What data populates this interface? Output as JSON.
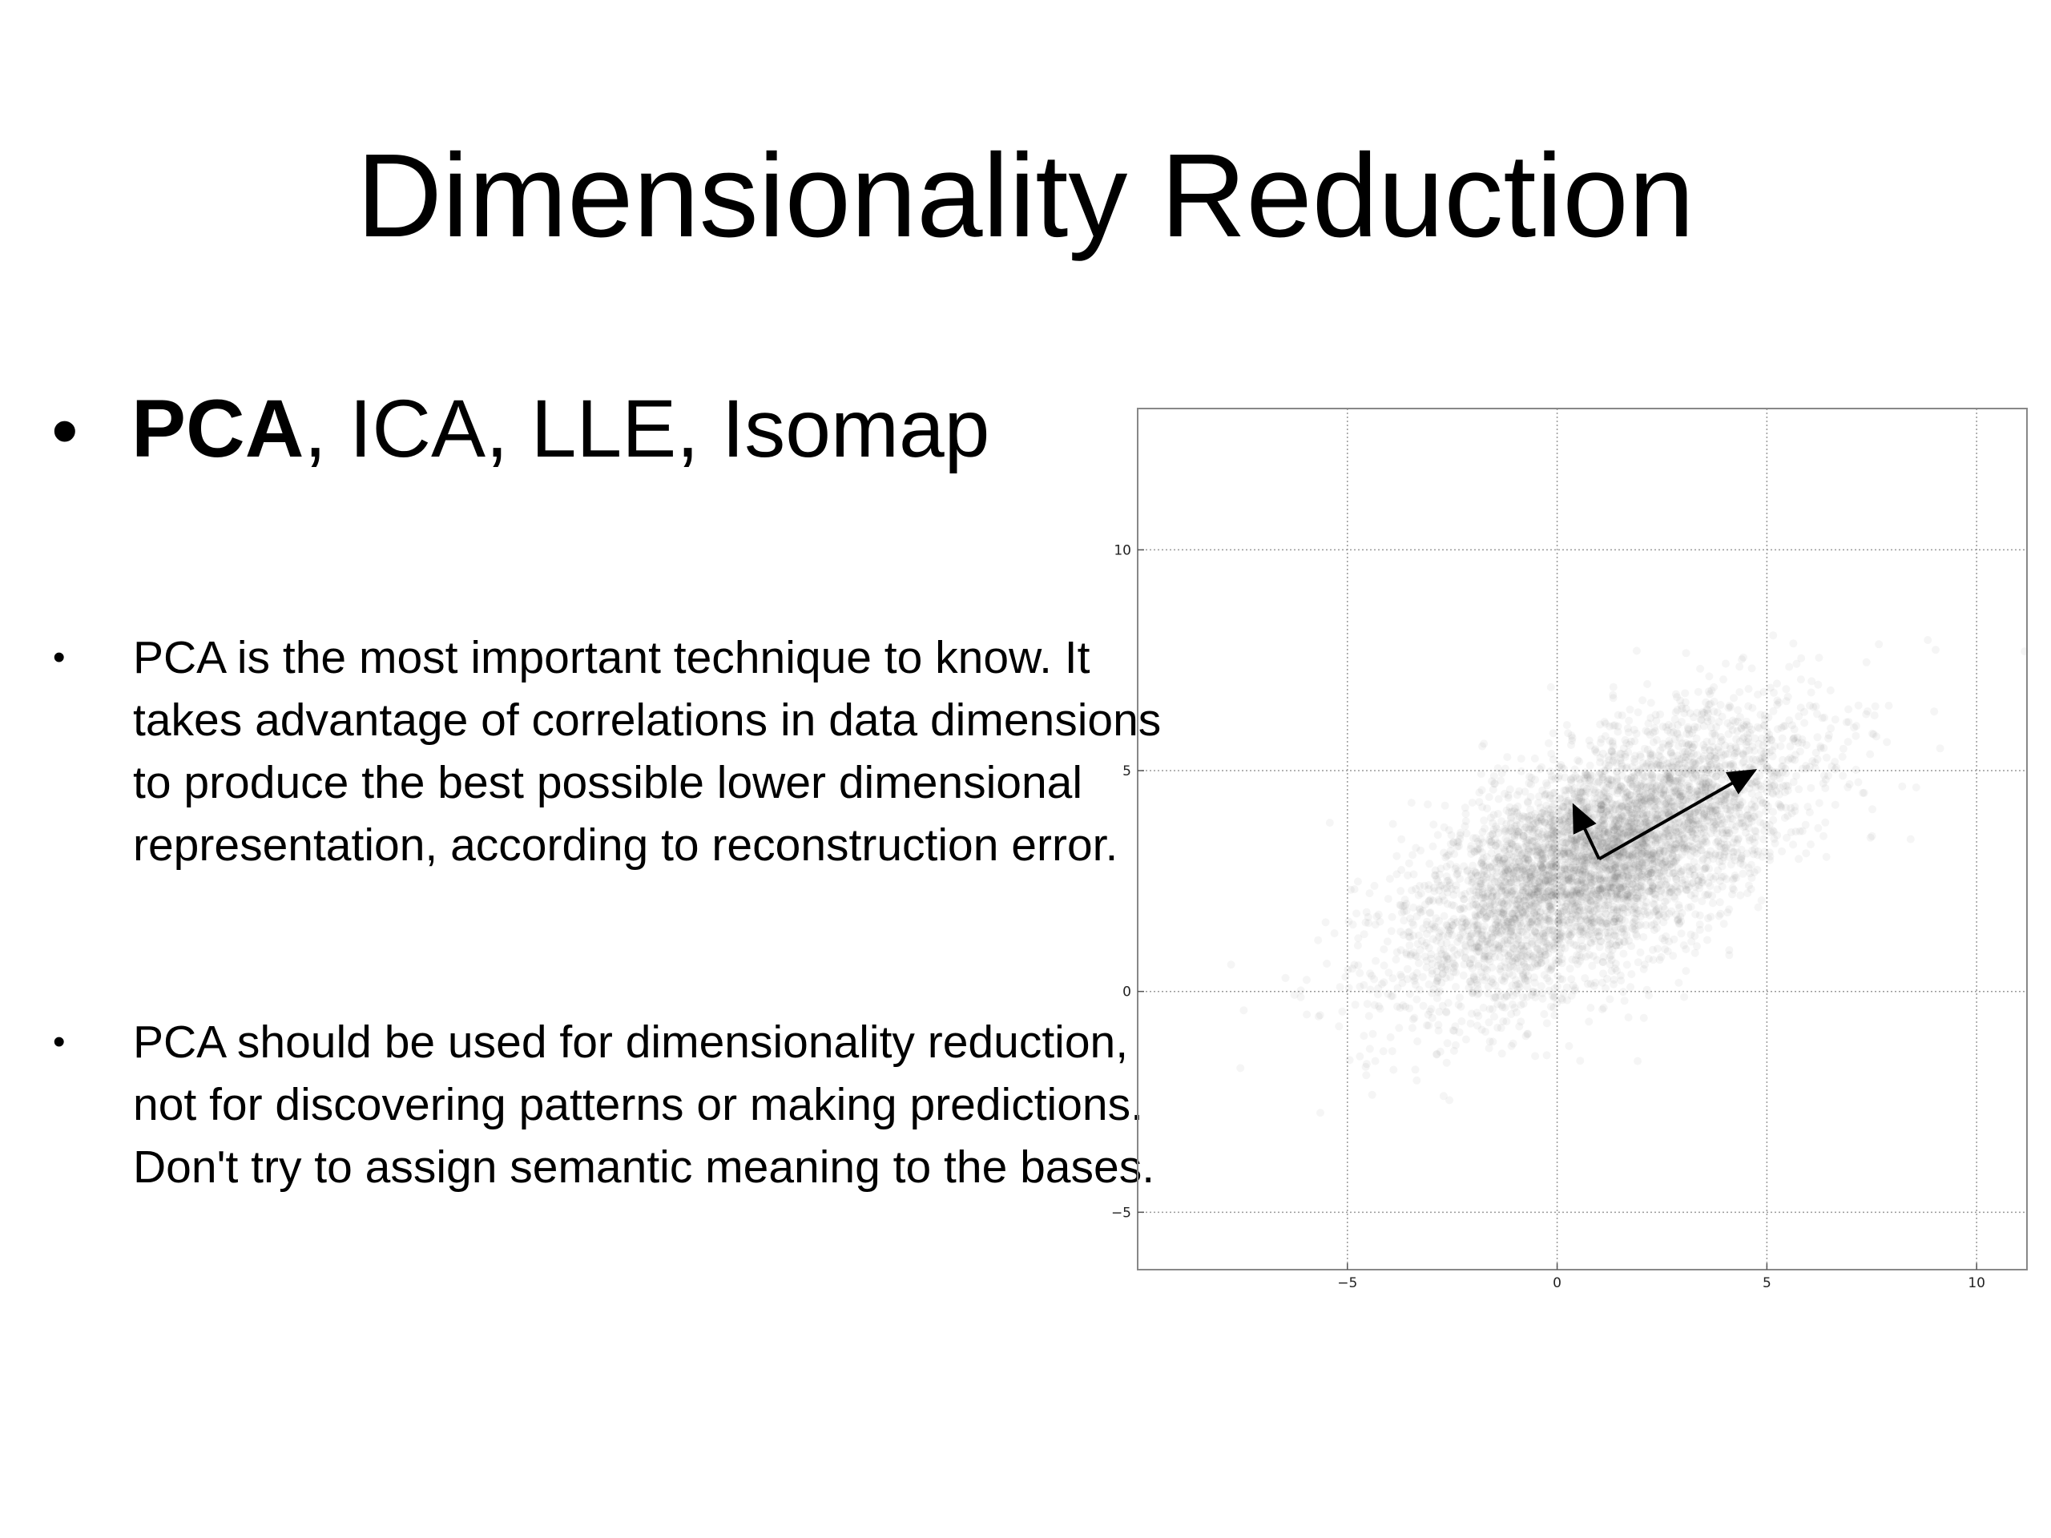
{
  "slide": {
    "title": "Dimensionality Reduction",
    "main_bullet": {
      "bold_part": "PCA",
      "rest": ", ICA, LLE, Isomap"
    },
    "sub_bullets": [
      "PCA is the most important technique to know.  It takes advantage of correlations in data dimensions to produce the best possible lower dimensional representation, according to reconstruction error.",
      "PCA should be used for dimensionality reduction, not for discovering patterns or making predictions. Don't try to assign semantic meaning to the bases."
    ]
  },
  "chart_data": {
    "type": "scatter",
    "title": "",
    "xlabel": "",
    "ylabel": "",
    "xlim": [
      -10,
      11.2
    ],
    "ylim": [
      -6.3,
      13.2
    ],
    "xticks": [
      -5,
      0,
      5,
      10
    ],
    "yticks": [
      -5,
      0,
      5,
      10
    ],
    "xtick_labels": [
      "−5",
      "0",
      "5",
      "10"
    ],
    "ytick_labels": [
      "−5",
      "0",
      "5",
      "10"
    ],
    "grid": true,
    "point_color": "#555555",
    "distribution": {
      "mean": [
        1,
        3
      ],
      "principal_axis_direction": [
        0.866,
        0.5
      ],
      "std_major": 2.6,
      "std_minor": 1.1,
      "n_points": 5000
    },
    "vectors": [
      {
        "from": [
          1,
          3
        ],
        "to": [
          4.7,
          5
        ]
      },
      {
        "from": [
          1,
          3
        ],
        "to": [
          0.4,
          4.2
        ]
      }
    ],
    "arrow_color": "#000000"
  }
}
